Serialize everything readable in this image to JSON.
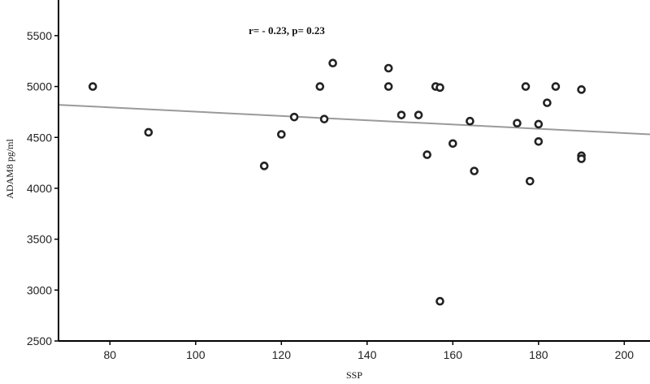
{
  "chart_data": {
    "type": "scatter",
    "title": "",
    "xlabel": "SSP",
    "ylabel": "ADAM8  pg/ml",
    "annotation": "r= - 0.23, p= 0.23",
    "xlim": [
      68,
      206
    ],
    "ylim": [
      2500,
      5850
    ],
    "x_ticks": [
      80,
      100,
      120,
      140,
      160,
      180,
      200
    ],
    "y_ticks": [
      2500,
      3000,
      3500,
      4000,
      4500,
      5000,
      5500
    ],
    "points": [
      {
        "x": 76,
        "y": 5000
      },
      {
        "x": 89,
        "y": 4550
      },
      {
        "x": 116,
        "y": 4220
      },
      {
        "x": 120,
        "y": 4530
      },
      {
        "x": 123,
        "y": 4700
      },
      {
        "x": 129,
        "y": 5000
      },
      {
        "x": 130,
        "y": 4680
      },
      {
        "x": 132,
        "y": 5230
      },
      {
        "x": 145,
        "y": 5180
      },
      {
        "x": 145,
        "y": 5000
      },
      {
        "x": 148,
        "y": 4720
      },
      {
        "x": 152,
        "y": 4720
      },
      {
        "x": 154,
        "y": 4330
      },
      {
        "x": 156,
        "y": 5000
      },
      {
        "x": 157,
        "y": 4990
      },
      {
        "x": 157,
        "y": 2890
      },
      {
        "x": 160,
        "y": 4440
      },
      {
        "x": 164,
        "y": 4660
      },
      {
        "x": 165,
        "y": 4170
      },
      {
        "x": 175,
        "y": 4640
      },
      {
        "x": 177,
        "y": 5000
      },
      {
        "x": 178,
        "y": 4070
      },
      {
        "x": 180,
        "y": 4630
      },
      {
        "x": 180,
        "y": 4460
      },
      {
        "x": 182,
        "y": 4840
      },
      {
        "x": 184,
        "y": 5000
      },
      {
        "x": 190,
        "y": 4970
      },
      {
        "x": 190,
        "y": 4320
      },
      {
        "x": 190,
        "y": 4290
      }
    ],
    "fit_line": {
      "x": [
        68,
        206
      ],
      "y": [
        4820,
        4530
      ]
    },
    "grid": false,
    "colors": {
      "point": "#222222",
      "fit_line": "#9a9a9a",
      "axis": "#000000"
    }
  }
}
